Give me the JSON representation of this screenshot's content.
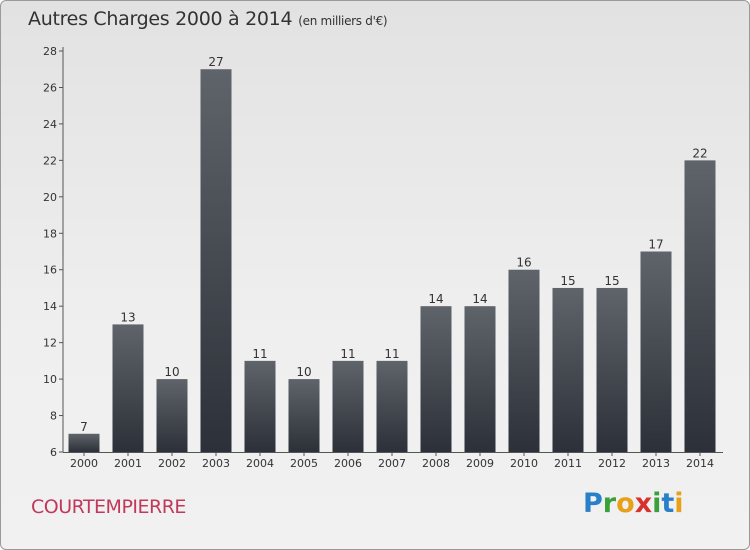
{
  "header": {
    "title": "Autres Charges 2000 à 2014",
    "subtitle": "(en milliers d'€)"
  },
  "commune": "COURTEMPIERRE",
  "logo": {
    "text": "Proxiti",
    "letters": [
      {
        "ch": "P",
        "color": "#2a7fc9"
      },
      {
        "ch": "r",
        "color": "#3aa13a"
      },
      {
        "ch": "o",
        "color": "#e8a019"
      },
      {
        "ch": "x",
        "color": "#d8322c"
      },
      {
        "ch": "i",
        "color": "#3aa13a"
      },
      {
        "ch": "t",
        "color": "#2a7fc9"
      },
      {
        "ch": "i",
        "color": "#e8a019"
      }
    ]
  },
  "colors": {
    "bar_top": "#5f646b",
    "bar_bottom": "#2c3038",
    "axis": "#555555",
    "commune": "#c0395a"
  },
  "chart_data": {
    "type": "bar",
    "categories": [
      "2000",
      "2001",
      "2002",
      "2003",
      "2004",
      "2005",
      "2006",
      "2007",
      "2008",
      "2009",
      "2010",
      "2011",
      "2012",
      "2013",
      "2014"
    ],
    "values": [
      7,
      13,
      10,
      27,
      11,
      10,
      11,
      11,
      14,
      14,
      16,
      15,
      15,
      17,
      22
    ],
    "title": "Autres Charges 2000 à 2014",
    "ylim": [
      6,
      28
    ],
    "yticks": [
      6,
      8,
      10,
      12,
      14,
      16,
      18,
      20,
      22,
      24,
      26,
      28
    ],
    "grid": false,
    "data_labels": true
  }
}
